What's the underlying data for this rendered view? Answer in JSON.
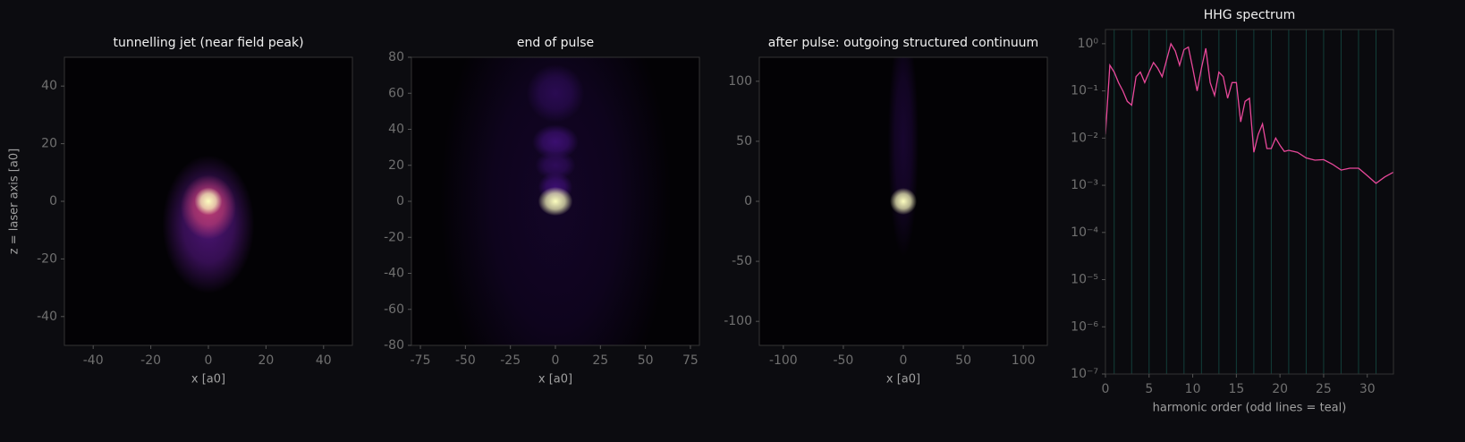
{
  "chart_data": [
    {
      "type": "heatmap",
      "title": "tunnelling jet  (near field peak)",
      "xlabel": "x [a0]",
      "ylabel": "z = laser axis [a0]",
      "xlim": [
        -50,
        50
      ],
      "ylim": [
        -50,
        50
      ],
      "xticks": [
        -40,
        -20,
        0,
        20,
        40
      ],
      "yticks": [
        -40,
        -20,
        0,
        20,
        40
      ],
      "blobs": [
        {
          "x": 0,
          "y": -8,
          "rx": 10,
          "ry": 15,
          "intensity": 0.3
        },
        {
          "x": 0,
          "y": -2,
          "rx": 6,
          "ry": 7,
          "intensity": 0.65
        },
        {
          "x": 0,
          "y": 0,
          "rx": 3,
          "ry": 3,
          "intensity": 1
        }
      ]
    },
    {
      "type": "heatmap",
      "title": "end of pulse",
      "xlabel": "x [a0]",
      "xlim": [
        -80,
        80
      ],
      "ylim": [
        -80,
        80
      ],
      "xticks": [
        -75,
        -50,
        -25,
        0,
        25,
        50,
        75
      ],
      "yticks": [
        -80,
        -60,
        -40,
        -20,
        0,
        20,
        40,
        60,
        80
      ],
      "blobs": [
        {
          "x": 0,
          "y": 0,
          "rx": 40,
          "ry": 80,
          "intensity": 0.08
        },
        {
          "x": 0,
          "y": 60,
          "rx": 10,
          "ry": 10,
          "intensity": 0.18
        },
        {
          "x": 0,
          "y": 33,
          "rx": 8,
          "ry": 6,
          "intensity": 0.25
        },
        {
          "x": 0,
          "y": 20,
          "rx": 7,
          "ry": 5,
          "intensity": 0.2
        },
        {
          "x": 0,
          "y": 8,
          "rx": 6,
          "ry": 5,
          "intensity": 0.25
        },
        {
          "x": 0,
          "y": 0,
          "rx": 6,
          "ry": 5,
          "intensity": 1
        }
      ]
    },
    {
      "type": "heatmap",
      "title": "after pulse: outgoing structured continuum",
      "xlabel": "x [a0]",
      "xlim": [
        -120,
        120
      ],
      "ylim": [
        -120,
        120
      ],
      "xticks": [
        -100,
        -50,
        0,
        50,
        100
      ],
      "yticks": [
        -100,
        -50,
        0,
        50,
        100
      ],
      "blobs": [
        {
          "x": 0,
          "y": 50,
          "rx": 8,
          "ry": 60,
          "intensity": 0.1
        },
        {
          "x": 0,
          "y": 0,
          "rx": 7,
          "ry": 7,
          "intensity": 1
        }
      ]
    },
    {
      "type": "line",
      "title": "HHG spectrum",
      "xlabel": "harmonic order (odd lines = teal)",
      "log_y": true,
      "color": "#e8489a",
      "harmonic_color": "#123f3a",
      "harmonic_lines": [
        1,
        3,
        5,
        7,
        9,
        11,
        13,
        15,
        17,
        19,
        21,
        23,
        25,
        27,
        29,
        31
      ],
      "xlim": [
        0,
        33
      ],
      "ylim": [
        1e-07,
        2
      ],
      "xticks": [
        0,
        5,
        10,
        15,
        20,
        25,
        30
      ],
      "yticks": [
        {
          "value": 1,
          "label": "10⁰"
        },
        {
          "value": 0.1,
          "label": "10⁻¹"
        },
        {
          "value": 0.01,
          "label": "10⁻²"
        },
        {
          "value": 0.001,
          "label": "10⁻³"
        },
        {
          "value": 0.0001,
          "label": "10⁻⁴"
        },
        {
          "value": 1e-05,
          "label": "10⁻⁵"
        },
        {
          "value": 1e-06,
          "label": "10⁻⁶"
        },
        {
          "value": 1e-07,
          "label": "10⁻⁷"
        }
      ],
      "x": [
        0,
        0.5,
        1,
        1.5,
        2,
        2.5,
        3,
        3.5,
        4,
        4.5,
        5,
        5.5,
        6,
        6.5,
        7,
        7.5,
        8,
        8.5,
        9,
        9.5,
        10,
        10.5,
        11,
        11.5,
        12,
        12.5,
        13,
        13.5,
        14,
        14.5,
        15,
        15.5,
        16,
        16.5,
        17,
        17.5,
        18,
        18.5,
        19,
        19.5,
        20,
        20.5,
        21,
        22,
        23,
        24,
        25,
        26,
        27,
        28,
        29,
        30,
        31,
        32,
        33
      ],
      "values": [
        0.012,
        0.35,
        0.25,
        0.15,
        0.1,
        0.06,
        0.05,
        0.2,
        0.25,
        0.15,
        0.25,
        0.4,
        0.3,
        0.2,
        0.45,
        1.0,
        0.7,
        0.35,
        0.75,
        0.85,
        0.3,
        0.1,
        0.3,
        0.8,
        0.15,
        0.08,
        0.25,
        0.2,
        0.07,
        0.15,
        0.15,
        0.022,
        0.06,
        0.07,
        0.005,
        0.012,
        0.02,
        0.006,
        0.006,
        0.01,
        0.007,
        0.0052,
        0.0055,
        0.005,
        0.0038,
        0.0034,
        0.0035,
        0.0028,
        0.0021,
        0.0023,
        0.0023,
        0.0016,
        0.0011,
        0.0015,
        0.0019
      ]
    }
  ]
}
